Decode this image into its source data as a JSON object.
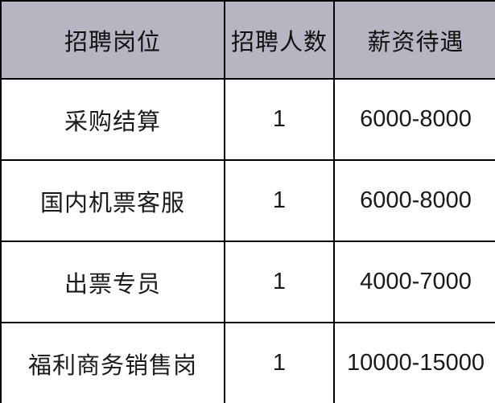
{
  "table": {
    "title": "recruitment-positions-table",
    "headers": [
      "招聘岗位",
      "招聘人数",
      "薪资待遇"
    ],
    "rows": [
      {
        "position": "采购结算",
        "headcount": "1",
        "salary": "6000-8000"
      },
      {
        "position": "国内机票客服",
        "headcount": "1",
        "salary": "6000-8000"
      },
      {
        "position": "出票专员",
        "headcount": "1",
        "salary": "4000-7000"
      },
      {
        "position": "福利商务销售岗",
        "headcount": "1",
        "salary": "10000-15000"
      }
    ],
    "colors": {
      "header_bg": "#b7b5c1",
      "body_bg": "#ffffff",
      "border": "#000000",
      "text": "#1a1a1a"
    }
  }
}
